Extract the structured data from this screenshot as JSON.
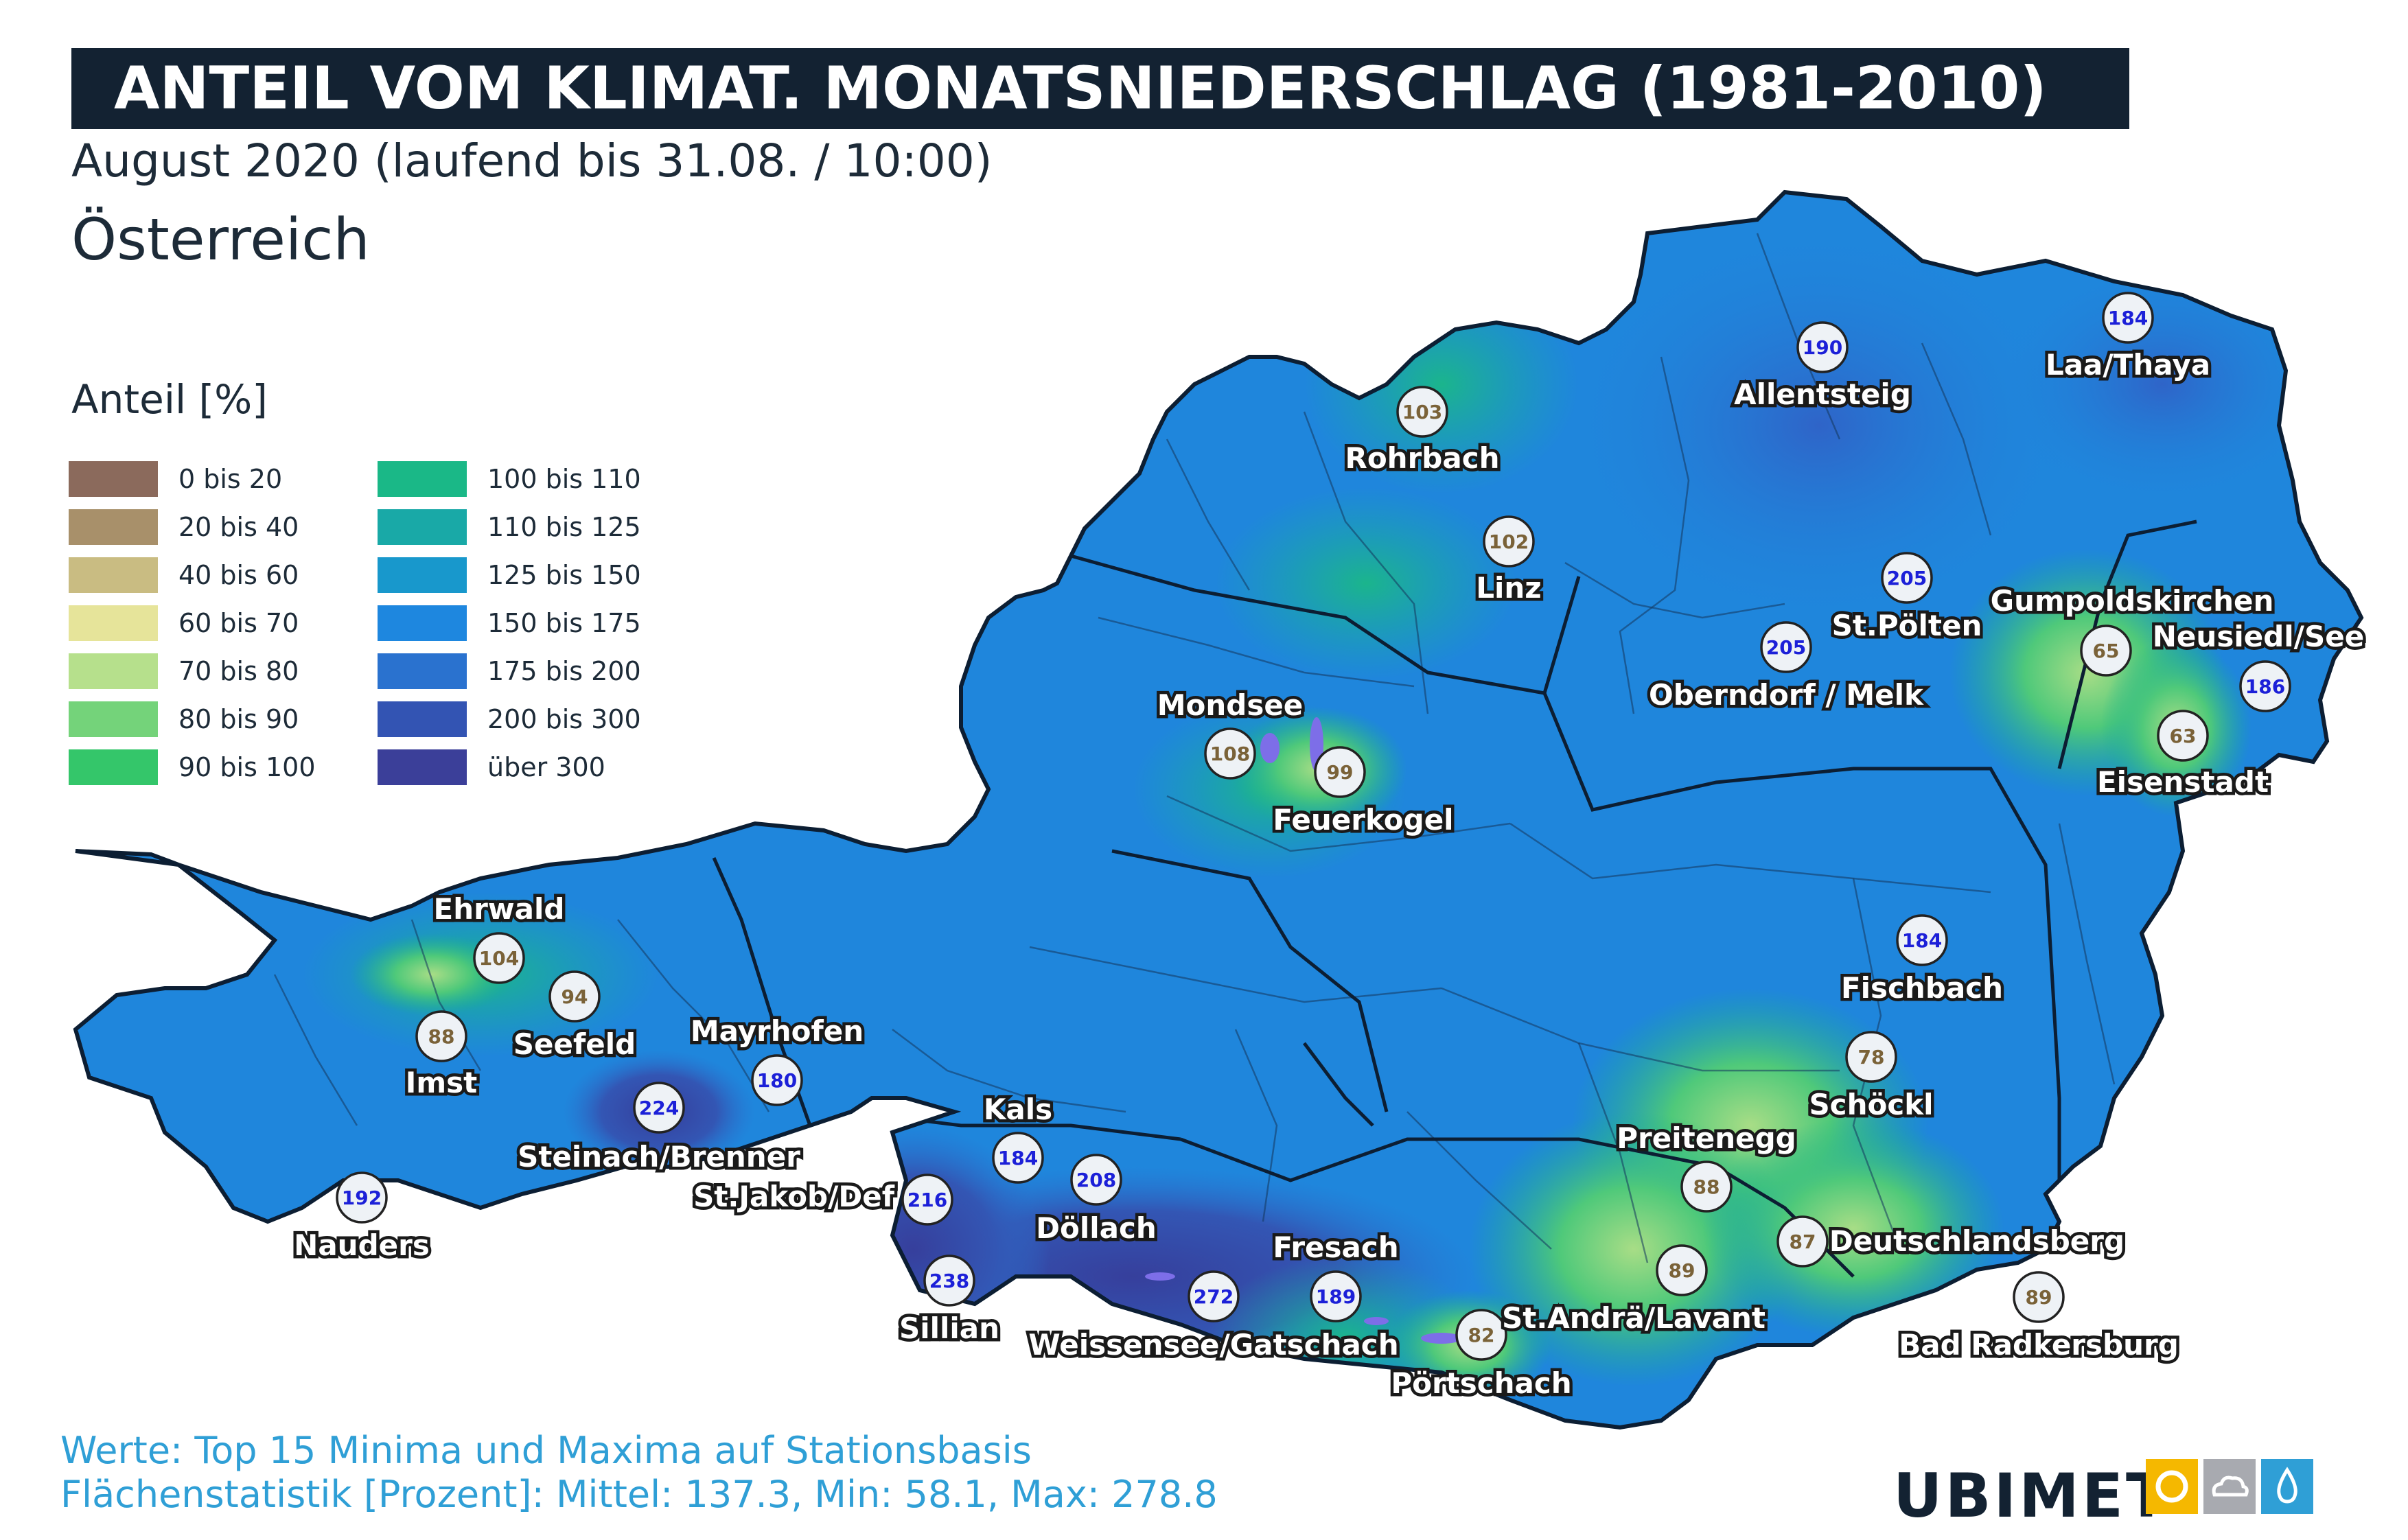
{
  "header": {
    "title": "ANTEIL VOM KLIMAT. MONATSNIEDERSCHLAG (1981-2010)",
    "subtitle": "August 2020 (laufend bis 31.08. / 10:00)",
    "region": "Österreich"
  },
  "legend": {
    "title": "Anteil [%]",
    "items": [
      {
        "label": "0 bis 20",
        "color": "#8b6a5c"
      },
      {
        "label": "20 bis 40",
        "color": "#a8906a"
      },
      {
        "label": "40 bis 60",
        "color": "#c9bc82"
      },
      {
        "label": "60 bis 70",
        "color": "#e6e49a"
      },
      {
        "label": "70 bis 80",
        "color": "#b6e08c"
      },
      {
        "label": "80 bis 90",
        "color": "#74d37a"
      },
      {
        "label": "90 bis 100",
        "color": "#34c66a"
      },
      {
        "label": "100 bis 110",
        "color": "#1ab887"
      },
      {
        "label": "110 bis 125",
        "color": "#19a9a7"
      },
      {
        "label": "125 bis 150",
        "color": "#1898cc"
      },
      {
        "label": "150 bis 175",
        "color": "#1e87df"
      },
      {
        "label": "175 bis 200",
        "color": "#2a72cf"
      },
      {
        "label": "200 bis 300",
        "color": "#3354b3"
      },
      {
        "label": "über 300",
        "color": "#3b3f99"
      }
    ]
  },
  "stations": [
    {
      "name": "Allentsteig",
      "value": "190",
      "type": "max"
    },
    {
      "name": "Laa/Thaya",
      "value": "184",
      "type": "max"
    },
    {
      "name": "Rohrbach",
      "value": "103",
      "type": "min"
    },
    {
      "name": "Linz",
      "value": "102",
      "type": "min"
    },
    {
      "name": "St.Pölten",
      "value": "205",
      "type": "max"
    },
    {
      "name": "Oberndorf / Melk",
      "value": "205",
      "type": "max"
    },
    {
      "name": "Gumpoldskirchen",
      "value": "65",
      "type": "min"
    },
    {
      "name": "Neusiedl/See",
      "value": "186",
      "type": "max"
    },
    {
      "name": "Eisenstadt",
      "value": "63",
      "type": "min"
    },
    {
      "name": "Mondsee",
      "value": "108",
      "type": "min"
    },
    {
      "name": "Feuerkogel",
      "value": "99",
      "type": "min"
    },
    {
      "name": "Ehrwald",
      "value": "104",
      "type": "min"
    },
    {
      "name": "Seefeld",
      "value": "94",
      "type": "min"
    },
    {
      "name": "Imst",
      "value": "88",
      "type": "min"
    },
    {
      "name": "Mayrhofen",
      "value": "180",
      "type": "max"
    },
    {
      "name": "Steinach/Brenner",
      "value": "224",
      "type": "max"
    },
    {
      "name": "Nauders",
      "value": "192",
      "type": "max"
    },
    {
      "name": "Kals",
      "value": "184",
      "type": "max"
    },
    {
      "name": "St.Jakob/Def",
      "value": "216",
      "type": "max"
    },
    {
      "name": "Döllach",
      "value": "208",
      "type": "max"
    },
    {
      "name": "Sillian",
      "value": "238",
      "type": "max"
    },
    {
      "name": "Weissensee/Gatschach",
      "value": "272",
      "type": "max"
    },
    {
      "name": "Fresach",
      "value": "189",
      "type": "max"
    },
    {
      "name": "Pörtschach",
      "value": "82",
      "type": "min"
    },
    {
      "name": "Fischbach",
      "value": "184",
      "type": "max"
    },
    {
      "name": "Schöckl",
      "value": "78",
      "type": "min"
    },
    {
      "name": "Preitenegg",
      "value": "88",
      "type": "min"
    },
    {
      "name": "St.Andrä/Lavant",
      "value": "89",
      "type": "min"
    },
    {
      "name": "Deutschlandsberg",
      "value": "87",
      "type": "min"
    },
    {
      "name": "Bad Radkersburg",
      "value": "89",
      "type": "min"
    }
  ],
  "footnotes": {
    "line1": "Werte: Top 15 Minima und Maxima auf Stationsbasis",
    "line2": "Flächenstatistik [Prozent]: Mittel: 137.3, Min: 58.1, Max: 278.8"
  },
  "logo": {
    "text": "UBIMET",
    "icons": [
      "sun-icon",
      "cloud-icon",
      "drop-icon"
    ],
    "icon_bg_color": "#f5b800"
  },
  "colors": {
    "title_bg": "#132232",
    "max_value_text": "#1c20d8",
    "min_value_text": "#7a6238",
    "marker_fill": "#eef2f6",
    "footnote_text": "#2f9fd6"
  }
}
